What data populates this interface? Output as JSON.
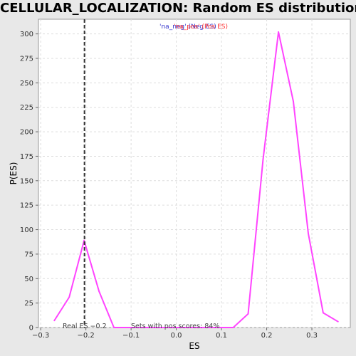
{
  "chart_data": {
    "type": "line",
    "title": "CELLULAR_LOCALIZATION: Random ES distribution",
    "xlabel": "ES",
    "ylabel": "P(ES)",
    "xlim": [
      -0.305,
      0.385
    ],
    "ylim": [
      0,
      315
    ],
    "x_ticks": [
      -0.3,
      -0.2,
      -0.1,
      0.0,
      0.1,
      0.2,
      0.3
    ],
    "x_tick_labels": [
      "−0.3",
      "−0.2",
      "−0.1",
      "0.0",
      "0.1",
      "0.2",
      "0.3"
    ],
    "y_ticks": [
      0,
      25,
      50,
      75,
      100,
      125,
      150,
      175,
      200,
      225,
      250,
      275,
      300
    ],
    "grid": true,
    "series": [
      {
        "color": "#ff44ff",
        "x": [
          -0.27,
          -0.237,
          -0.204,
          -0.171,
          -0.138,
          -0.105,
          -0.072,
          -0.039,
          -0.006,
          0.027,
          0.06,
          0.093,
          0.126,
          0.159,
          0.192,
          0.226,
          0.259,
          0.292,
          0.325,
          0.358
        ],
        "y": [
          7,
          31,
          89,
          37,
          0,
          0,
          0,
          0,
          0,
          0,
          0,
          0,
          0,
          14,
          172,
          302,
          231,
          96,
          15,
          6
        ]
      }
    ],
    "real_es": -0.2,
    "real_es_label": "Real ES −0.2",
    "annotation": "Sets with pos scores: 84%",
    "legend_pos": "'na_neg' (Neg ES)",
    "legend_neg": "'na_pos' (Pos ES)",
    "line_color": "#ff44ff",
    "marker_color": "#333333"
  }
}
